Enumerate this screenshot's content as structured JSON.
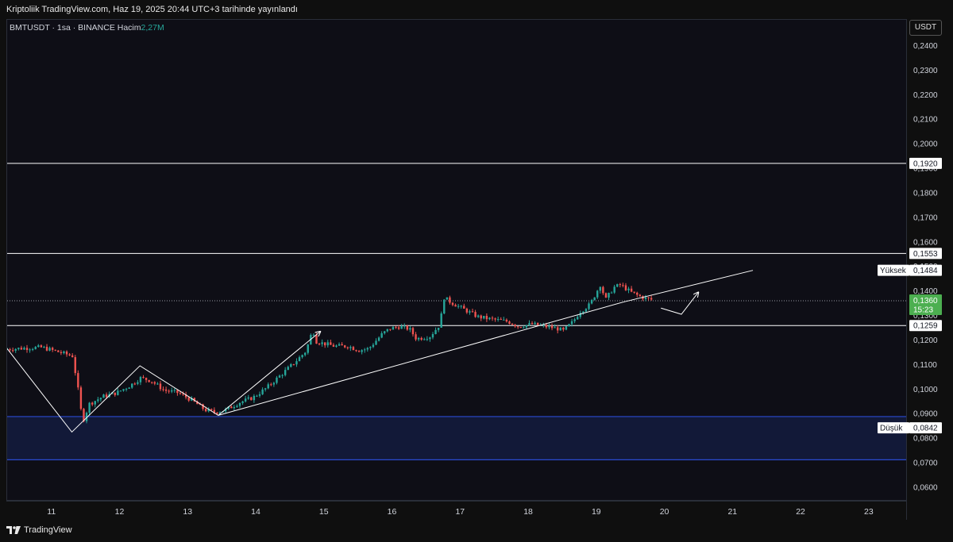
{
  "header": {
    "published": "Kriptoliik TradingView.com, Haz 19, 2025 20:44 UTC+3 tarihinde yayınlandı"
  },
  "legend": {
    "symbol": "BMTUSDT · 1sa · BINANCE",
    "volume_label": "Hacim",
    "volume_value": "2,27M"
  },
  "currency": "USDT",
  "footer": {
    "brand": "TradingView"
  },
  "colors": {
    "up": "#26a69a",
    "down": "#ef5350",
    "zone": "#1e3a8a",
    "line": "#ffffff",
    "current_price_bg": "#4caf50"
  },
  "chart_data": {
    "type": "candlestick",
    "symbol": "BMTUSDT",
    "interval": "1sa",
    "exchange": "BINANCE",
    "y_ticks": [
      "0,2400",
      "0,2300",
      "0,2200",
      "0,2100",
      "0,2000",
      "0,1900",
      "0,1800",
      "0,1700",
      "0,1600",
      "0,1500",
      "0,1400",
      "0,1300",
      "0,1200",
      "0,1100",
      "0,1000",
      "0,0900",
      "0,0800",
      "0,0700",
      "0,0600"
    ],
    "x_ticks": [
      "11",
      "12",
      "13",
      "14",
      "15",
      "16",
      "17",
      "18",
      "19",
      "20",
      "21",
      "22",
      "23"
    ],
    "ylim": [
      0.0545,
      0.2505
    ],
    "xlim": [
      10.35,
      23.55
    ],
    "horizontal_levels": [
      {
        "price": 0.192,
        "label": "0,1920"
      },
      {
        "price": 0.1553,
        "label": "0,1553"
      },
      {
        "price": 0.1259,
        "label": "0,1259"
      }
    ],
    "current_price": {
      "price": 0.136,
      "label": "0,1360",
      "countdown": "15:23"
    },
    "high_marker": {
      "label": "Yüksek",
      "price": 0.1484,
      "value": "0,1484"
    },
    "low_marker": {
      "label": "Düşük",
      "price": 0.0842,
      "value": "0,0842"
    },
    "support_zone": {
      "top": 0.0888,
      "bottom": 0.0712
    },
    "trendline": [
      {
        "x": 13.45,
        "y": 0.0893
      },
      {
        "x": 19.4,
        "y": 0.1355
      },
      {
        "x": 21.3,
        "y": 0.1484
      }
    ],
    "drawn_paths": [
      [
        {
          "x": 10.35,
          "y": 0.1165
        },
        {
          "x": 11.3,
          "y": 0.0825
        },
        {
          "x": 12.3,
          "y": 0.1095
        },
        {
          "x": 13.45,
          "y": 0.0893
        },
        {
          "x": 14.95,
          "y": 0.1235
        }
      ],
      [
        {
          "x": 19.95,
          "y": 0.133
        },
        {
          "x": 20.25,
          "y": 0.1305
        },
        {
          "x": 20.5,
          "y": 0.1395
        }
      ]
    ],
    "price_path": [
      [
        10.35,
        0.1162
      ],
      [
        10.7,
        0.1168
      ],
      [
        10.9,
        0.117
      ],
      [
        11.1,
        0.1155
      ],
      [
        11.35,
        0.1135
      ],
      [
        11.42,
        0.1025
      ],
      [
        11.5,
        0.0865
      ],
      [
        11.6,
        0.094
      ],
      [
        11.8,
        0.097
      ],
      [
        12.0,
        0.0985
      ],
      [
        12.2,
        0.1015
      ],
      [
        12.35,
        0.1045
      ],
      [
        12.5,
        0.1035
      ],
      [
        12.7,
        0.0995
      ],
      [
        12.9,
        0.0985
      ],
      [
        13.1,
        0.0955
      ],
      [
        13.3,
        0.0915
      ],
      [
        13.45,
        0.0905
      ],
      [
        13.6,
        0.0915
      ],
      [
        13.8,
        0.0945
      ],
      [
        14.0,
        0.0965
      ],
      [
        14.2,
        0.1005
      ],
      [
        14.4,
        0.1055
      ],
      [
        14.6,
        0.1105
      ],
      [
        14.78,
        0.1155
      ],
      [
        14.88,
        0.1245
      ],
      [
        14.92,
        0.1195
      ],
      [
        15.05,
        0.1185
      ],
      [
        15.2,
        0.1175
      ],
      [
        15.4,
        0.1175
      ],
      [
        15.55,
        0.1158
      ],
      [
        15.7,
        0.1165
      ],
      [
        15.9,
        0.1225
      ],
      [
        16.0,
        0.1245
      ],
      [
        16.15,
        0.1255
      ],
      [
        16.3,
        0.1245
      ],
      [
        16.4,
        0.1205
      ],
      [
        16.6,
        0.1215
      ],
      [
        16.75,
        0.1265
      ],
      [
        16.8,
        0.1375
      ],
      [
        16.9,
        0.1355
      ],
      [
        17.1,
        0.1325
      ],
      [
        17.3,
        0.1295
      ],
      [
        17.5,
        0.1285
      ],
      [
        17.75,
        0.1275
      ],
      [
        17.9,
        0.1255
      ],
      [
        18.1,
        0.1265
      ],
      [
        18.3,
        0.1255
      ],
      [
        18.5,
        0.1245
      ],
      [
        18.55,
        0.1235
      ],
      [
        18.7,
        0.1275
      ],
      [
        18.8,
        0.1315
      ],
      [
        18.95,
        0.1345
      ],
      [
        19.1,
        0.1425
      ],
      [
        19.18,
        0.1365
      ],
      [
        19.3,
        0.1415
      ],
      [
        19.4,
        0.1425
      ],
      [
        19.55,
        0.1395
      ],
      [
        19.7,
        0.1375
      ],
      [
        19.85,
        0.1365
      ]
    ]
  }
}
